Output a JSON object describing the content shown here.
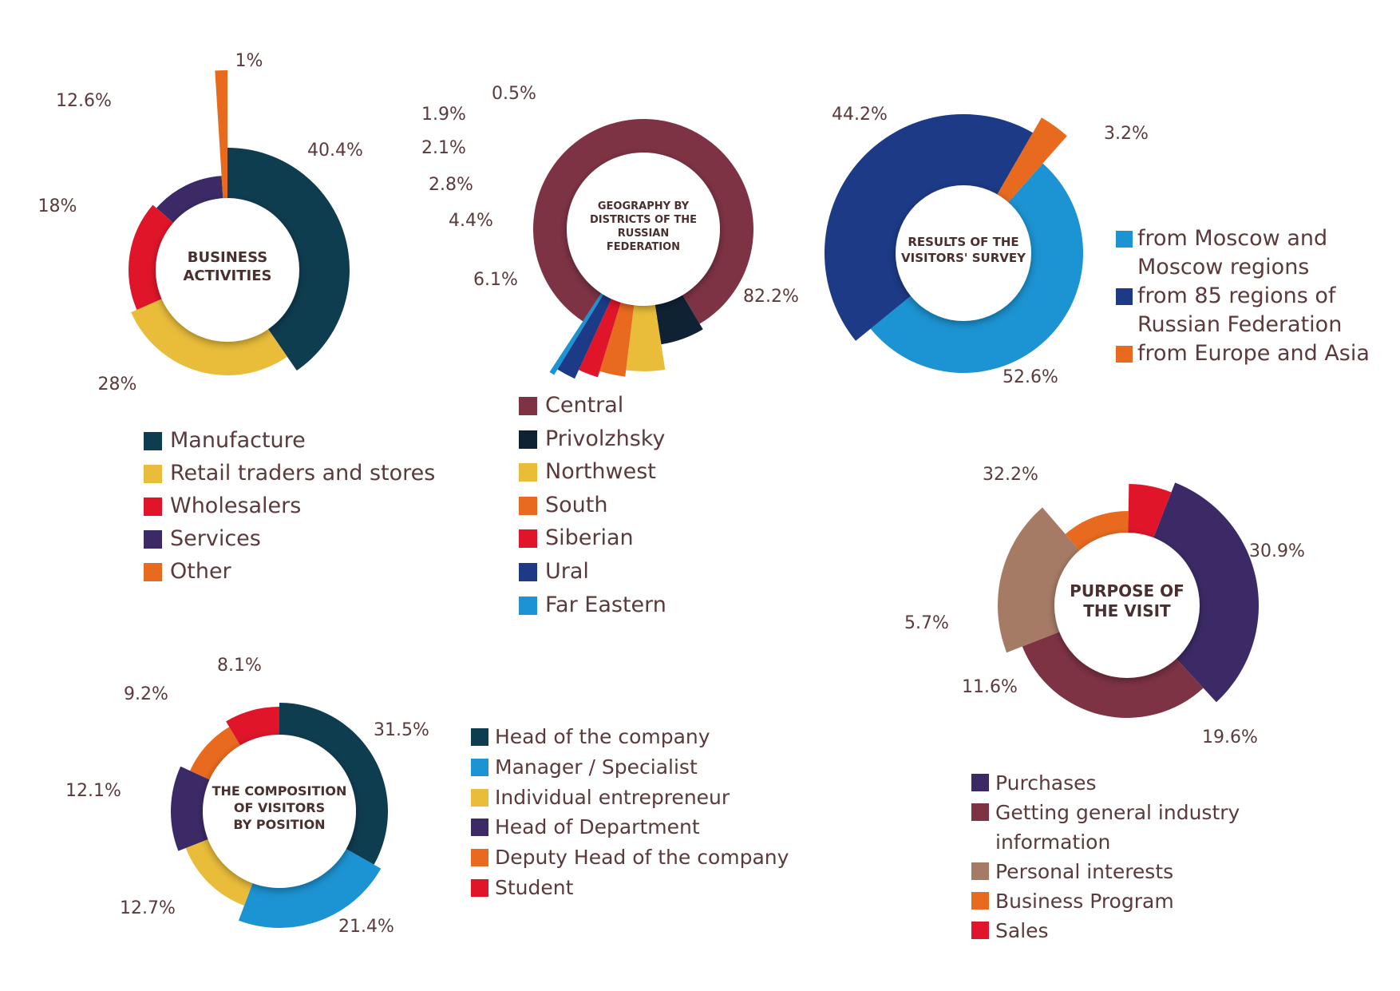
{
  "chart_data": [
    {
      "id": "business",
      "type": "pie",
      "title": "BUSINESS ACTIVITIES",
      "categories": [
        "Manufacture",
        "Retail traders and stores",
        "Wholesalers",
        "Services",
        "Other"
      ],
      "values": [
        40.4,
        28,
        18,
        12.6,
        1
      ],
      "value_labels": [
        "40.4%",
        "28%",
        "18%",
        "12.6%",
        "1%"
      ],
      "colors": [
        "#0e3d50",
        "#e9bd3a",
        "#e0152a",
        "#3c2a67",
        "#e86a1f"
      ]
    },
    {
      "id": "geo",
      "type": "pie",
      "title": "GEOGRAPHY BY DISTRICTS OF THE RUSSIAN FEDERATION",
      "categories": [
        "Central",
        "Privolzhsky",
        "Northwest",
        "South",
        "Siberian",
        "Ural",
        "Far Eastern"
      ],
      "values": [
        82.2,
        6.1,
        4.4,
        2.8,
        2.1,
        1.9,
        0.5
      ],
      "value_labels": [
        "82.2%",
        "6.1%",
        "4.4%",
        "2.8%",
        "2.1%",
        "1.9%",
        "0.5%"
      ],
      "colors": [
        "#7d3344",
        "#0f2233",
        "#e9bd3a",
        "#e86a1f",
        "#e0152a",
        "#1c3a86",
        "#1c93d2"
      ]
    },
    {
      "id": "survey",
      "type": "pie",
      "title": "RESULTS OF THE VISITORS' SURVEY",
      "categories": [
        "from Moscow and Moscow regions",
        "from 85 regions of Russian Federation",
        "from Europe and Asia"
      ],
      "values": [
        52.6,
        44.2,
        3.2
      ],
      "value_labels": [
        "52.6%",
        "44.2%",
        "3.2%"
      ],
      "colors": [
        "#1c93d2",
        "#1c3a86",
        "#e86a1f"
      ]
    },
    {
      "id": "purpose",
      "type": "pie",
      "title": "PURPOSE OF THE VISIT",
      "categories": [
        "Purchases",
        "Getting general industry information",
        "Personal interests",
        "Business Program",
        "Sales"
      ],
      "values": [
        32.2,
        30.9,
        19.6,
        11.6,
        5.7
      ],
      "value_labels": [
        "32.2%",
        "30.9%",
        "19.6%",
        "11.6%",
        "5.7%"
      ],
      "colors": [
        "#3c2a67",
        "#7d3344",
        "#a57b66",
        "#e86a1f",
        "#e0152a"
      ]
    },
    {
      "id": "position",
      "type": "pie",
      "title": "THE COMPOSITION OF VISITORS BY POSITION",
      "categories": [
        "Head of the company",
        "Manager / Specialist",
        "Individual entrepreneur",
        "Head of Department",
        "Deputy Head of the company",
        "Student"
      ],
      "values": [
        31.5,
        21.4,
        12.7,
        12.1,
        9.2,
        8.1
      ],
      "value_labels": [
        "31.5%",
        "21.4%",
        "12.7%",
        "12.1%",
        "9.2%",
        "8.1%"
      ],
      "colors": [
        "#0e3d50",
        "#1c93d2",
        "#e9bd3a",
        "#3c2a67",
        "#e86a1f",
        "#e0152a"
      ]
    }
  ]
}
